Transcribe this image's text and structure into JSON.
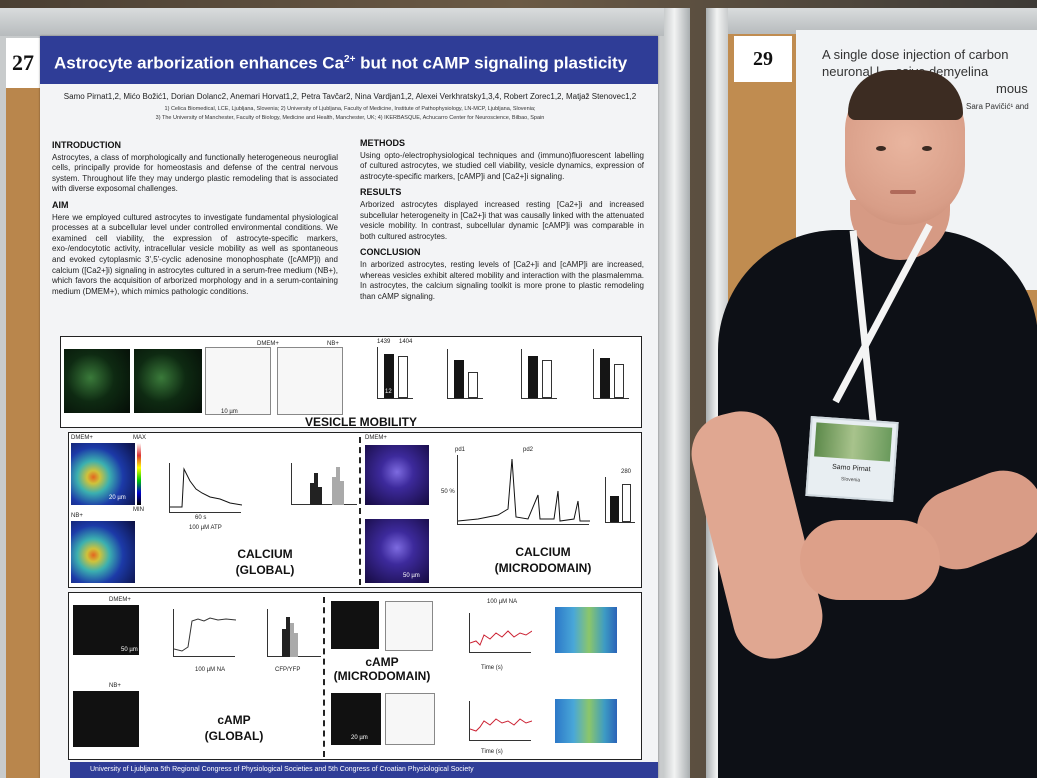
{
  "poster_left": {
    "number": "27",
    "title_main": "Astrocyte arborization enhances Ca",
    "title_sup": "2+",
    "title_rest": " but not cAMP signaling plasticity",
    "authors": "Samo Pirnat1,2, Mićo Božić1, Dorian Dolanc2, Anemari Horvat1,2, Petra Tavčar2, Nina Vardjan1,2, Alexei Verkhratsky1,3,4, Robert Zorec1,2, Matjaž Stenovec1,2",
    "affiliation_1": "1) Celica Biomedical, LCE, Ljubljana, Slovenia; 2) University of Ljubljana, Faculty of Medicine, Institute of Pathophysiology, LN-MCP, Ljubljana, Slovenia;",
    "affiliation_2": "3) The University of Manchester, Faculty of Biology, Medicine and Health, Manchester, UK; 4) IKERBASQUE, Achucarro Center for Neuroscience, Bilbao, Spain",
    "introduction_heading": "INTRODUCTION",
    "introduction_text": "Astrocytes, a class of morphologically and functionally heterogeneous neuroglial cells, principally provide for homeostasis and defense of the central nervous system. Throughout life they may undergo plastic remodeling that is associated with diverse exposomal challenges.",
    "aim_heading": "AIM",
    "aim_text": "Here we employed cultured astrocytes to investigate fundamental physiological processes at a subcellular level under controlled environmental conditions. We examined cell viability, the expression of astrocyte-specific markers, exo-/endocytotic activity, intracellular vesicle mobility as well as spontaneous and evoked cytoplasmic 3',5'-cyclic adenosine monophosphate ([cAMP]i) and calcium ([Ca2+]i) signaling in astrocytes cultured in a serum-free medium (NB+), which favors the acquisition of arborized morphology and in a serum-containing medium (DMEM+), which mimics pathologic conditions.",
    "methods_heading": "METHODS",
    "methods_text": "Using opto-/electrophysiological techniques and (immuno)fluorescent labelling of cultured astrocytes, we studied cell viability, vesicle dynamics, expression of astrocyte-specific markers, [cAMP]i and [Ca2+]i signaling.",
    "results_heading": "RESULTS",
    "results_text": "Arborized astrocytes displayed increased resting [Ca2+]i and increased subcellular heterogeneity in [Ca2+]i that was causally linked with the attenuated vesicle mobility. In contrast, subcellular dynamic [cAMP]i was comparable in both cultured astrocytes.",
    "conclusion_heading": "CONCLUSION",
    "conclusion_text": "In arborized astrocytes, resting levels of [Ca2+]i and [cAMP]i are increased, whereas vesicles exhibit altered mobility and interaction with the plasmalemma. In astrocytes, the calcium signaling toolkit is more prone to plastic remodeling than cAMP signaling.",
    "section_vesicle": "VESICLE MOBILITY",
    "section_calcium_global_1": "CALCIUM",
    "section_calcium_global_2": "(GLOBAL)",
    "section_calcium_micro_1": "CALCIUM",
    "section_calcium_micro_2": "(MICRODOMAIN)",
    "section_camp_micro_1": "cAMP",
    "section_camp_micro_2": "(MICRODOMAIN)",
    "section_camp_global_1": "cAMP",
    "section_camp_global_2": "(GLOBAL)",
    "label_dmem": "DMEM+",
    "label_nb": "NB+",
    "label_max": "MAX",
    "label_min": "MIN",
    "label_atp": "100 µM ATP",
    "label_na": "100 µM NA",
    "label_cfp": "CFP/YFP",
    "label_time": "Time (s)",
    "label_10um": "10 µm",
    "label_20um": "20 µm",
    "label_50um": "50 µm",
    "label_60s": "60 s",
    "label_1439": "1439",
    "label_1404": "1404",
    "label_280": "280",
    "label_12": "12",
    "label_pd1": "pd1",
    "label_pd2": "pd2",
    "label_50pct": "50 %",
    "footer_text": "University of Ljubljana      5th Regional Congress of Physiological Societies and 5th Congress of Croatian Physiological Society"
  },
  "poster_right": {
    "number": "29",
    "title_line1": "A single dose injection of carbon",
    "title_line2": "neuronal l… ssive demyelina",
    "title_line3": "mous",
    "author_fragment": "Sara Pavičić¹ and"
  },
  "badge": {
    "name": "Samo Pirnat",
    "country": "Slovenia"
  },
  "colors": {
    "poster_blue": "#2f3d97",
    "cork": "#b9864c",
    "shirt": "#0d1016"
  }
}
